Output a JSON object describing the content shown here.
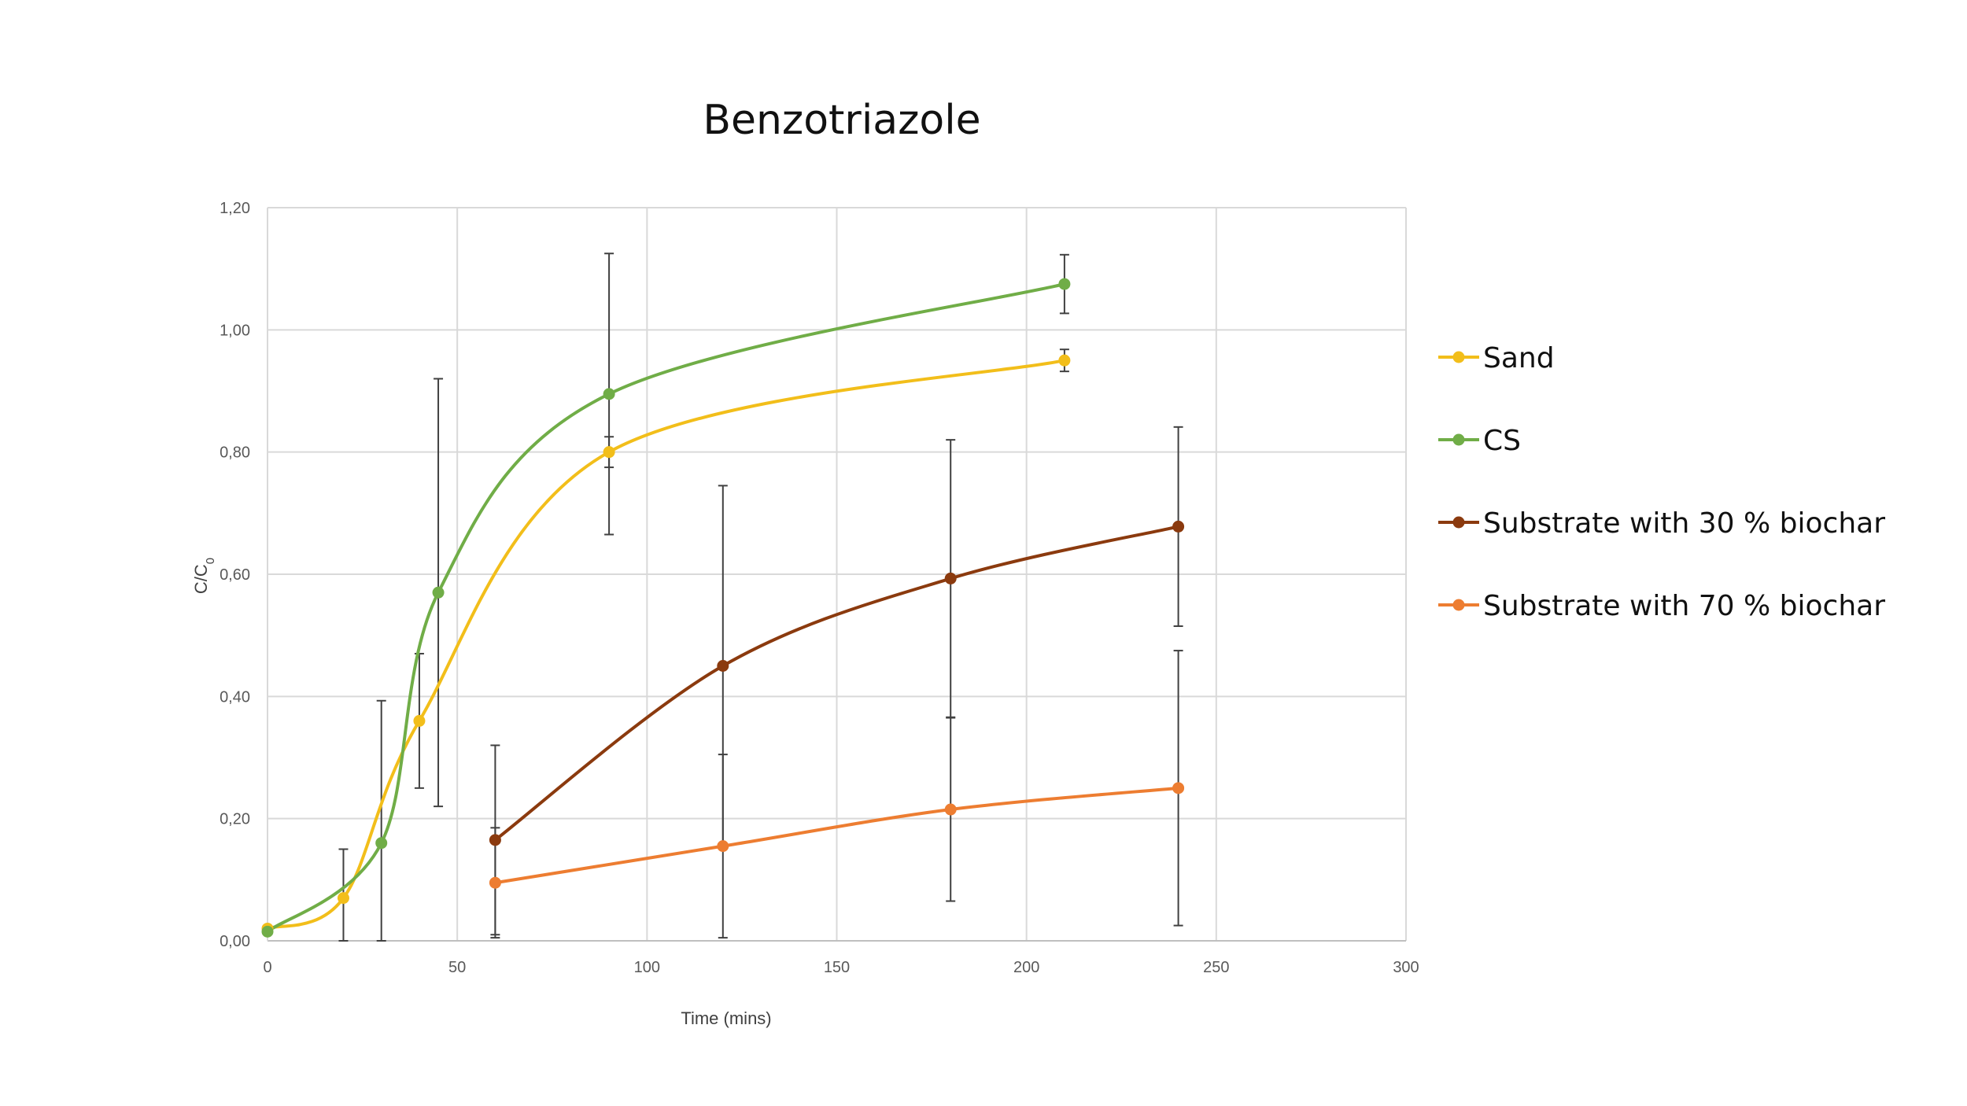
{
  "chart_data": {
    "type": "line",
    "title": "Benzotriazole",
    "xlabel": "Time (mins)",
    "ylabel": "C/C",
    "ylabel_subscript": "0",
    "xlim": [
      0,
      300
    ],
    "ylim": [
      0,
      1.2
    ],
    "x_ticks": [
      0,
      50,
      100,
      150,
      200,
      250,
      300
    ],
    "x_tick_labels": [
      "0",
      "50",
      "100",
      "150",
      "200",
      "250",
      "300"
    ],
    "y_ticks": [
      0,
      0.2,
      0.4,
      0.6,
      0.8,
      1.0,
      1.2
    ],
    "y_tick_labels": [
      "0,00",
      "0,20",
      "0,40",
      "0,60",
      "0,80",
      "1,00",
      "1,20"
    ],
    "grid": true,
    "legend_position": "right",
    "series": [
      {
        "name": "Sand",
        "color": "#F2BE1A",
        "x": [
          0,
          20,
          40,
          90,
          210
        ],
        "y": [
          0.02,
          0.07,
          0.36,
          0.8,
          0.95
        ],
        "err": [
          null,
          null,
          0.11,
          0.025,
          0.018
        ]
      },
      {
        "name": "CS",
        "color": "#70AD47",
        "x": [
          0,
          30,
          45,
          90,
          210
        ],
        "y": [
          0.015,
          0.16,
          0.57,
          0.895,
          1.075
        ],
        "err": [
          null,
          null,
          0.35,
          0.23,
          0.048
        ]
      },
      {
        "name": "Substrate with 30 % biochar",
        "color": "#8B3A0E",
        "x": [
          60,
          120,
          180,
          240
        ],
        "y": [
          0.165,
          0.45,
          0.593,
          0.678
        ],
        "err": [
          0.155,
          0.295,
          0.227,
          0.163
        ]
      },
      {
        "name": "Substrate with 70 % biochar",
        "color": "#ED7D31",
        "x": [
          60,
          120,
          180,
          240
        ],
        "y": [
          0.095,
          0.155,
          0.215,
          0.25
        ],
        "err": [
          0.09,
          0.15,
          0.15,
          0.225
        ]
      }
    ],
    "extra_error_bars": [
      {
        "x": 20,
        "y": 0.075,
        "err": 0.075,
        "color": "#404040"
      },
      {
        "x": 30,
        "y": 0.195,
        "err": 0.198,
        "color": "#404040"
      }
    ]
  }
}
